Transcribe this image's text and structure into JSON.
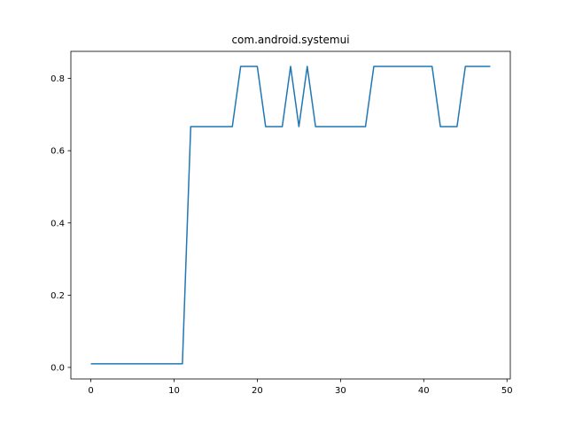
{
  "chart_data": {
    "type": "line",
    "title": "com.android.systemui",
    "xlabel": "",
    "ylabel": "",
    "xlim": [
      -2.4,
      50.4
    ],
    "ylim": [
      -0.032,
      0.875
    ],
    "xticks": [
      0,
      10,
      20,
      30,
      40,
      50
    ],
    "yticks": [
      0.0,
      0.2,
      0.4,
      0.6,
      0.8
    ],
    "xtick_labels": [
      "0",
      "10",
      "20",
      "30",
      "40",
      "50"
    ],
    "ytick_labels": [
      "0.0",
      "0.2",
      "0.4",
      "0.6",
      "0.8"
    ],
    "grid": false,
    "line_color": "#1f77b4",
    "series": [
      {
        "x": [
          0,
          1,
          2,
          3,
          4,
          5,
          6,
          7,
          8,
          9,
          10,
          11,
          12,
          13,
          14,
          15,
          16,
          17,
          18,
          19,
          20,
          21,
          22,
          23,
          24,
          25,
          26,
          27,
          28,
          29,
          30,
          31,
          32,
          33,
          34,
          35,
          36,
          37,
          38,
          39,
          40,
          41,
          42,
          43,
          44,
          45,
          46,
          47,
          48
        ],
        "values": [
          0.01,
          0.01,
          0.01,
          0.01,
          0.01,
          0.01,
          0.01,
          0.01,
          0.01,
          0.01,
          0.01,
          0.01,
          0.6667,
          0.6667,
          0.6667,
          0.6667,
          0.6667,
          0.6667,
          0.8333,
          0.8333,
          0.8333,
          0.6667,
          0.6667,
          0.6667,
          0.8333,
          0.6667,
          0.8333,
          0.6667,
          0.6667,
          0.6667,
          0.6667,
          0.6667,
          0.6667,
          0.6667,
          0.8333,
          0.8333,
          0.8333,
          0.8333,
          0.8333,
          0.8333,
          0.8333,
          0.8333,
          0.6667,
          0.6667,
          0.6667,
          0.8333,
          0.8333,
          0.8333,
          0.8333
        ]
      }
    ]
  }
}
